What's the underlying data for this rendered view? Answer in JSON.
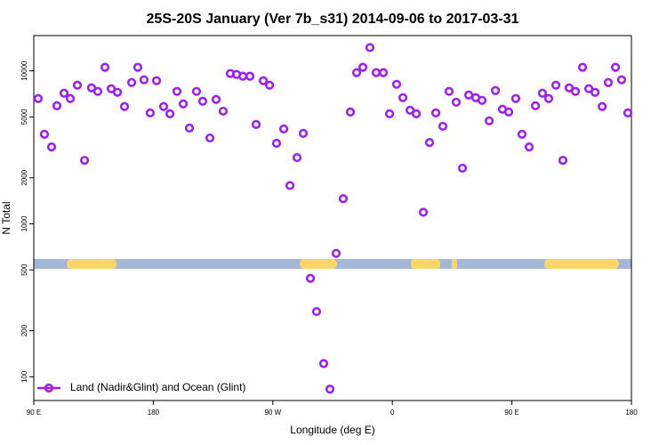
{
  "chart_data": {
    "type": "scatter",
    "title": "25S-20S January (Ver 7b_s31)   2014-09-06 to 2017-03-31",
    "xlabel": "Longitude (deg E)",
    "ylabel": "N Total",
    "x": [
      93.3,
      98,
      103.4,
      107.4,
      112.8,
      117.5,
      122.8,
      128.2,
      133.5,
      138.2,
      143.6,
      148.3,
      153,
      158.3,
      163.7,
      168.3,
      173,
      177.7,
      182.4,
      187.8,
      192.5,
      197.8,
      202.5,
      207.2,
      212.5,
      217.2,
      222.6,
      227.3,
      232.6,
      238,
      242.7,
      247.4,
      252.7,
      257.4,
      262.8,
      267.5,
      272.8,
      278.2,
      282.9,
      288.2,
      292.9,
      298.3,
      302.9,
      308.3,
      313,
      317.7,
      323,
      328.4,
      333.1,
      337.8,
      343.1,
      347.8,
      353.2,
      357.9,
      363.2,
      367.9,
      373.3,
      378,
      383.3,
      388,
      392.7,
      398,
      402.7,
      408.1,
      412.8,
      417.5,
      422.8,
      427.5,
      432.9,
      437.6,
      442.9,
      447.6,
      452.9,
      457.6,
      463,
      467.7,
      473,
      477.7,
      483.1,
      488.4,
      493.1,
      497.8,
      503.2,
      507.9,
      512.6,
      518,
      522.6,
      528,
      532.6,
      537.3
    ],
    "series": [
      {
        "name": "Land (Nadir&Glint) and Ocean (Glint)",
        "color": "#a020f0",
        "values": [
          6590,
          3850,
          3180,
          5910,
          7140,
          6590,
          8060,
          2600,
          7740,
          7340,
          10550,
          7640,
          7240,
          5840,
          8390,
          10550,
          8740,
          5310,
          8620,
          5840,
          5240,
          7340,
          6080,
          4230,
          7340,
          6330,
          3640,
          6500,
          5450,
          9600,
          9470,
          9230,
          9230,
          4460,
          8620,
          8060,
          3360,
          4170,
          1780,
          2710,
          3900,
          440,
          267,
          122,
          83,
          641,
          1460,
          5380,
          9730,
          10550,
          14200,
          9730,
          9730,
          5240,
          8170,
          6680,
          5530,
          5240,
          1190,
          3400,
          5310,
          4340,
          7340,
          6240,
          2310,
          6950,
          6680,
          6410,
          4710,
          7430,
          5610,
          5380,
          6590,
          3850,
          3180,
          5910,
          7140,
          6590,
          8060,
          2600,
          7740,
          7340,
          10550,
          7640,
          7240,
          5840,
          8390,
          10550,
          8740,
          5310
        ]
      }
    ],
    "xlim": [
      90,
      540
    ],
    "xticks": [
      {
        "value": 90,
        "label": "90 E"
      },
      180,
      {
        "value": 270,
        "label": "90 W"
      },
      {
        "value": 360,
        "label": "0"
      },
      {
        "value": 450,
        "label": "90 E"
      },
      {
        "value": 540,
        "label": "180"
      }
    ],
    "ylim": [
      70,
      17000
    ],
    "yticks": [
      100,
      200,
      500,
      1000,
      2000,
      5000,
      10000
    ],
    "ylog": true,
    "legend": "lower left"
  }
}
